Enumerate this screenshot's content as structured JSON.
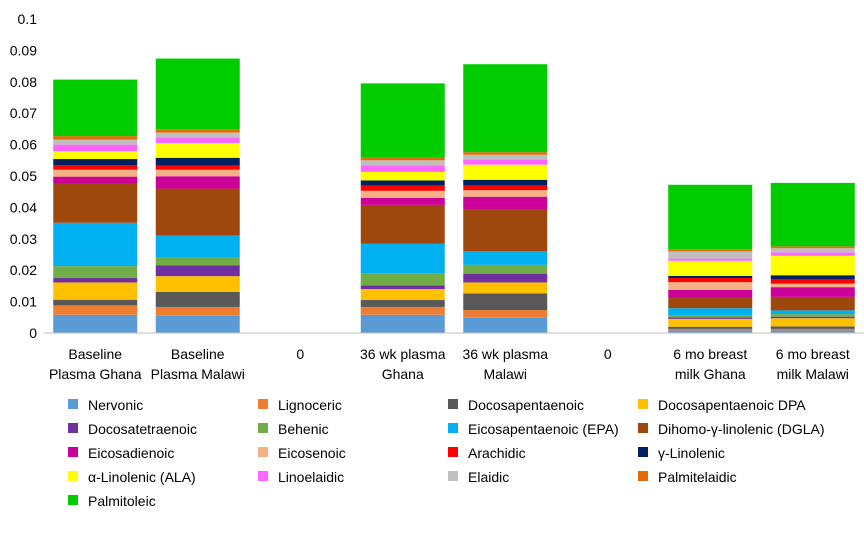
{
  "chart_data": {
    "type": "bar",
    "stacked": true,
    "ylim": [
      0,
      0.1
    ],
    "yticks": [
      "0",
      "0.01",
      "0.02",
      "0.03",
      "0.04",
      "0.05",
      "0.06",
      "0.07",
      "0.08",
      "0.09",
      "0.1"
    ],
    "grid": false,
    "legend_position": "bottom",
    "categories": [
      [
        "Baseline",
        "Plasma Ghana"
      ],
      [
        "Baseline",
        "Plasma Malawi"
      ],
      [
        "0"
      ],
      [
        "36 wk plasma",
        "Ghana"
      ],
      [
        "36 wk plasma",
        "Malawi"
      ],
      [
        "0"
      ],
      [
        "6 mo breast",
        "milk Ghana"
      ],
      [
        "6 mo breast",
        "milk Malawi"
      ]
    ],
    "series": [
      {
        "name": "Nervonic",
        "color": "#5B9BD5",
        "values": [
          0.0058,
          0.0055,
          0,
          0.0058,
          0.005,
          0,
          0.0008,
          0.0008
        ]
      },
      {
        "name": "Lignoceric",
        "color": "#ED7D31",
        "values": [
          0.003,
          0.0028,
          0,
          0.0025,
          0.0023,
          0,
          0.0005,
          0.0005
        ]
      },
      {
        "name": "Docosapentaenoic",
        "color": "#595959",
        "values": [
          0.0018,
          0.0048,
          0,
          0.0022,
          0.0053,
          0,
          0.0007,
          0.0008
        ]
      },
      {
        "name": "Docosapentaenoic DPA",
        "color": "#FFC000",
        "values": [
          0.0055,
          0.005,
          0,
          0.0035,
          0.0035,
          0,
          0.0025,
          0.0026
        ]
      },
      {
        "name": "Docosatetraenoic",
        "color": "#7030A0",
        "values": [
          0.0014,
          0.0034,
          0,
          0.0012,
          0.0028,
          0,
          0.0005,
          0.0005
        ]
      },
      {
        "name": "Behenic",
        "color": "#70AD47",
        "values": [
          0.0038,
          0.0027,
          0,
          0.0038,
          0.0028,
          0,
          0.0005,
          0.0008
        ]
      },
      {
        "name": "Eicosapentaenoic (EPA)",
        "color": "#00B0F0",
        "values": [
          0.0138,
          0.0068,
          0,
          0.0095,
          0.0043,
          0,
          0.0024,
          0.0012
        ]
      },
      {
        "name": "Dihomo-γ-linolenic (DGLA)",
        "color": "#9E480E",
        "values": [
          0.0125,
          0.015,
          0,
          0.0123,
          0.0135,
          0,
          0.0034,
          0.0043
        ]
      },
      {
        "name": "Eicosadienoic",
        "color": "#CC0099",
        "values": [
          0.0022,
          0.0039,
          0,
          0.0022,
          0.0039,
          0,
          0.0024,
          0.0031
        ]
      },
      {
        "name": "Eicosenoic",
        "color": "#F4B183",
        "values": [
          0.0022,
          0.0021,
          0,
          0.0023,
          0.0021,
          0,
          0.0025,
          0.0011
        ]
      },
      {
        "name": "Arachidic",
        "color": "#FF0000",
        "values": [
          0.0015,
          0.0013,
          0,
          0.0017,
          0.0015,
          0,
          0.0013,
          0.0015
        ]
      },
      {
        "name": "γ-Linolenic",
        "color": "#002060",
        "values": [
          0.0019,
          0.0025,
          0,
          0.0016,
          0.0018,
          0,
          0.0007,
          0.0012
        ]
      },
      {
        "name": "α-Linolenic (ALA)",
        "color": "#FFFF00",
        "values": [
          0.0025,
          0.0047,
          0,
          0.0027,
          0.0048,
          0,
          0.0048,
          0.0062
        ]
      },
      {
        "name": "Linoelaidic",
        "color": "#FF66FF",
        "values": [
          0.0021,
          0.0018,
          0,
          0.0021,
          0.0017,
          0,
          0.0007,
          0.0011
        ]
      },
      {
        "name": "Elaidic",
        "color": "#BFBFBF",
        "values": [
          0.0016,
          0.0015,
          0,
          0.0016,
          0.0015,
          0,
          0.0023,
          0.0013
        ]
      },
      {
        "name": "Palmitelaidic",
        "color": "#E36C09",
        "values": [
          0.0011,
          0.0011,
          0,
          0.0008,
          0.0008,
          0,
          0.0007,
          0.0006
        ]
      },
      {
        "name": "Palmitoleic",
        "color": "#00CC00",
        "values": [
          0.018,
          0.0225,
          0,
          0.0237,
          0.028,
          0,
          0.0205,
          0.0202
        ]
      }
    ]
  }
}
